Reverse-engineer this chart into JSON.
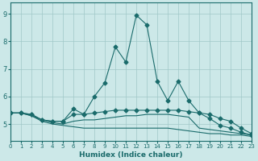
{
  "xlabel": "Humidex (Indice chaleur)",
  "xlim": [
    0,
    23
  ],
  "ylim": [
    4.4,
    9.4
  ],
  "yticks": [
    5,
    6,
    7,
    8,
    9
  ],
  "xticks": [
    0,
    1,
    2,
    3,
    4,
    5,
    6,
    7,
    8,
    9,
    10,
    11,
    12,
    13,
    14,
    15,
    16,
    17,
    18,
    19,
    20,
    21,
    22,
    23
  ],
  "bg_color": "#cce8e8",
  "line_color": "#1a6b6b",
  "line1_x": [
    0,
    1,
    2,
    3,
    4,
    5,
    6,
    7,
    8,
    9,
    10,
    11,
    12,
    13,
    14,
    15,
    16,
    17,
    18,
    19,
    20,
    21,
    22,
    23
  ],
  "line1_y": [
    5.4,
    5.4,
    5.35,
    5.15,
    5.1,
    5.1,
    5.55,
    5.35,
    6.0,
    6.5,
    7.8,
    7.25,
    8.95,
    8.6,
    6.55,
    5.85,
    6.55,
    5.85,
    5.4,
    5.2,
    4.95,
    4.85,
    4.7,
    4.6
  ],
  "line2_x": [
    0,
    1,
    2,
    3,
    4,
    5,
    6,
    7,
    8,
    9,
    10,
    11,
    12,
    13,
    14,
    15,
    16,
    17,
    18,
    19,
    20,
    21,
    22,
    23
  ],
  "line2_y": [
    5.4,
    5.4,
    5.35,
    5.15,
    5.1,
    5.1,
    5.35,
    5.35,
    5.4,
    5.45,
    5.5,
    5.5,
    5.5,
    5.5,
    5.5,
    5.5,
    5.5,
    5.45,
    5.4,
    5.35,
    5.2,
    5.1,
    4.85,
    4.65
  ],
  "line3_x": [
    0,
    1,
    2,
    3,
    4,
    5,
    6,
    7,
    8,
    9,
    10,
    11,
    12,
    13,
    14,
    15,
    16,
    17,
    18,
    19,
    20,
    21,
    22,
    23
  ],
  "line3_y": [
    5.4,
    5.4,
    5.3,
    5.15,
    5.05,
    5.0,
    5.1,
    5.15,
    5.15,
    5.2,
    5.25,
    5.3,
    5.3,
    5.35,
    5.35,
    5.35,
    5.3,
    5.25,
    4.85,
    4.8,
    4.75,
    4.7,
    4.65,
    4.6
  ],
  "line4_x": [
    0,
    1,
    2,
    3,
    4,
    5,
    6,
    7,
    8,
    9,
    10,
    11,
    12,
    13,
    14,
    15,
    16,
    17,
    18,
    19,
    20,
    21,
    22,
    23
  ],
  "line4_y": [
    5.4,
    5.4,
    5.3,
    5.1,
    5.0,
    4.95,
    4.9,
    4.85,
    4.85,
    4.85,
    4.85,
    4.85,
    4.85,
    4.85,
    4.85,
    4.85,
    4.8,
    4.75,
    4.7,
    4.65,
    4.65,
    4.6,
    4.6,
    4.55
  ],
  "marker": "D",
  "markersize": 2.5
}
